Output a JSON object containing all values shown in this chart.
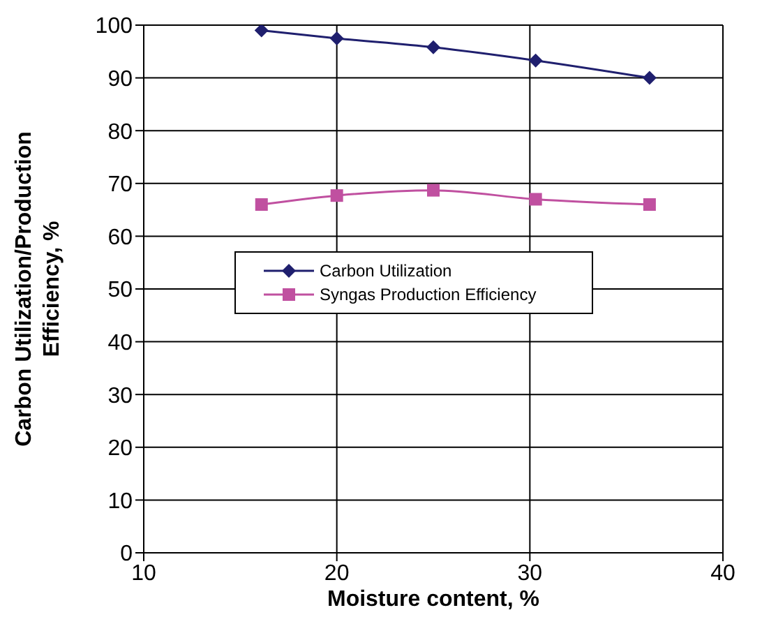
{
  "chart_data": {
    "type": "line",
    "xlabel": "Moisture content, %",
    "ylabel": "Carbon Utilization/Production Efficiency, %",
    "xlim": [
      10,
      40
    ],
    "xticks": [
      10,
      20,
      30,
      40
    ],
    "ylim": [
      0,
      100
    ],
    "yticks": [
      0,
      10,
      20,
      30,
      40,
      50,
      60,
      70,
      80,
      90,
      100
    ],
    "grid": true,
    "legend": "left",
    "series": [
      {
        "name": "Carbon Utilization",
        "color": "#1f1f6e",
        "marker": "diamond",
        "x": [
          16.1,
          20,
          25,
          30.3,
          36.2
        ],
        "values": [
          99,
          97.5,
          95.8,
          93.3,
          90
        ]
      },
      {
        "name": "Syngas Production Efficiency",
        "color": "#c050a0",
        "marker": "square",
        "x": [
          16.1,
          20,
          25,
          30.3,
          36.2
        ],
        "values": [
          66,
          67.7,
          68.7,
          67,
          66
        ]
      }
    ]
  }
}
